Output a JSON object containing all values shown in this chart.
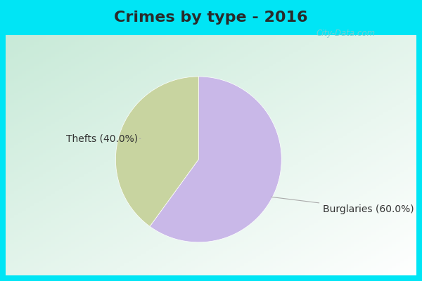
{
  "title": "Crimes by type - 2016",
  "slices": [
    {
      "label": "Burglaries (60.0%)",
      "value": 60.0,
      "color": "#c9b8e8"
    },
    {
      "label": "Thefts (40.0%)",
      "value": 40.0,
      "color": "#c8d4a0"
    }
  ],
  "background_cyan": "#00e5f5",
  "background_main_top_left": "#c8ead8",
  "background_main_bottom_right": "#e8f8f0",
  "title_fontsize": 16,
  "label_fontsize": 10,
  "watermark": "City-Data.com",
  "title_color": "#2a2a2a"
}
